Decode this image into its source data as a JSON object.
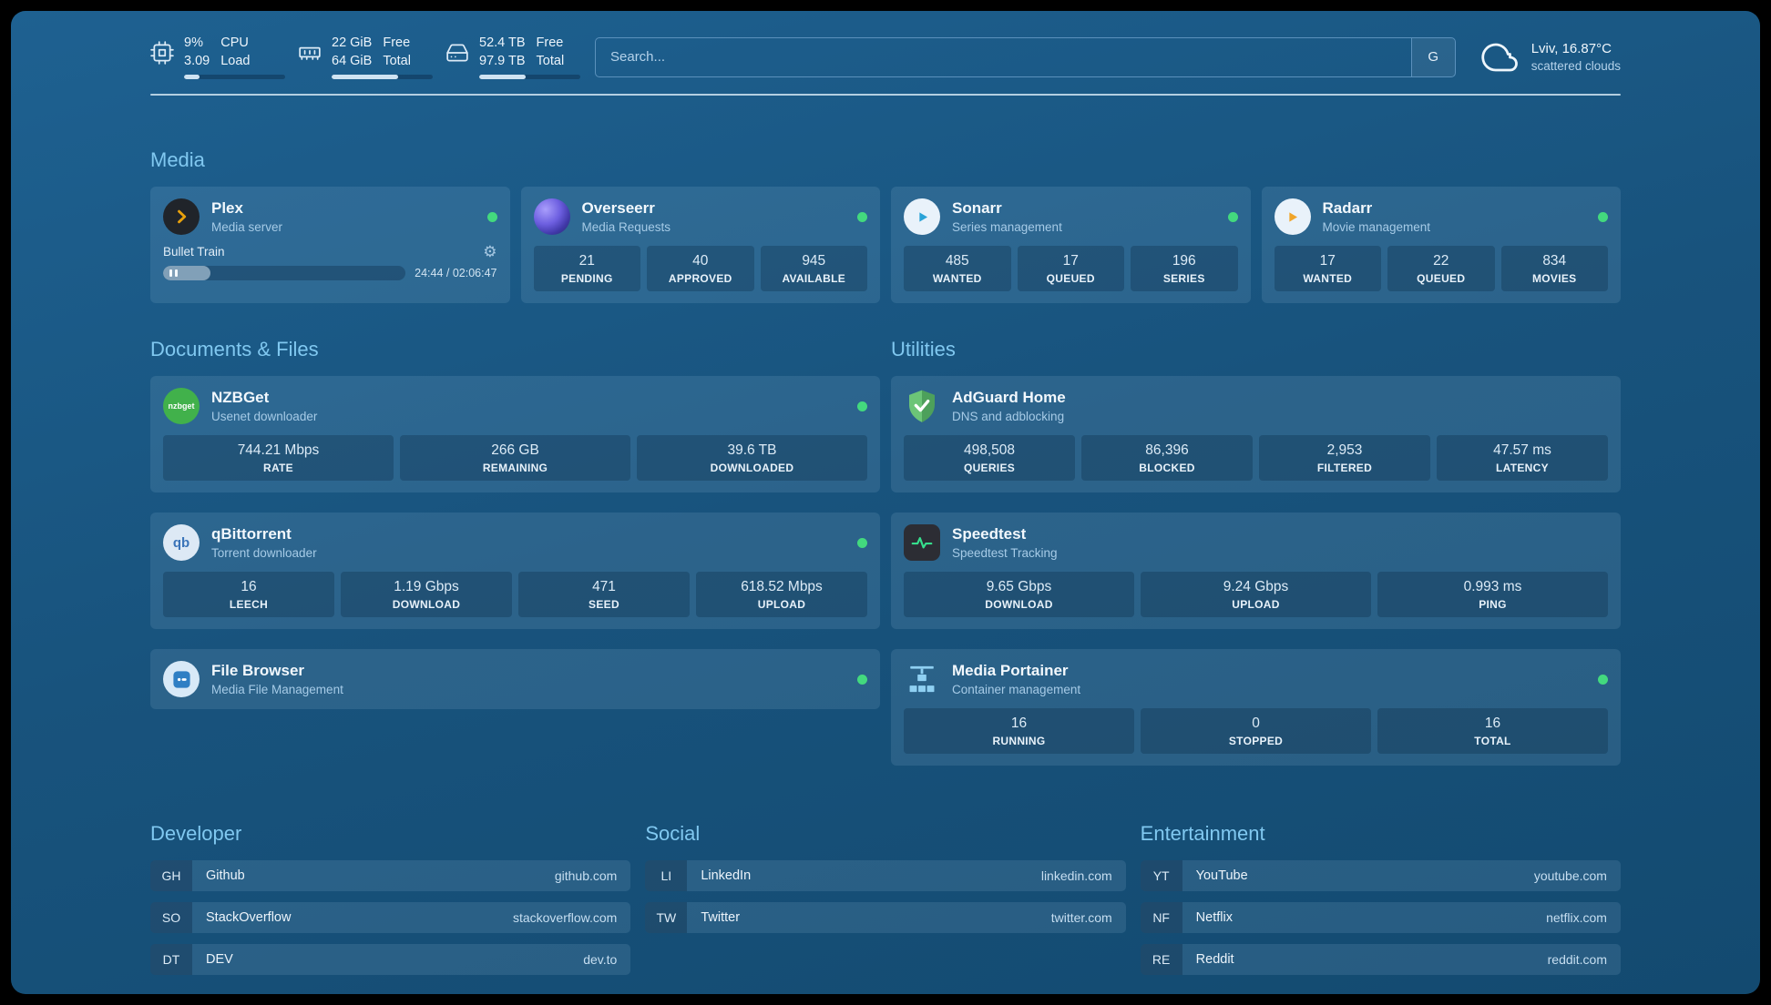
{
  "topbar": {
    "widgets": [
      {
        "icon": "cpu-icon",
        "values": [
          "9%",
          "3.09"
        ],
        "labels": [
          "CPU",
          "Load"
        ],
        "progress_pct": 15
      },
      {
        "icon": "memory-icon",
        "values": [
          "22 GiB",
          "64 GiB"
        ],
        "labels": [
          "Free",
          "Total"
        ],
        "progress_pct": 66
      },
      {
        "icon": "disk-icon",
        "values": [
          "52.4 TB",
          "97.9 TB"
        ],
        "labels": [
          "Free",
          "Total"
        ],
        "progress_pct": 46
      }
    ],
    "search": {
      "placeholder": "Search...",
      "provider": "G"
    },
    "weather": {
      "location": "Lviv, 16.87°C",
      "condition": "scattered clouds"
    }
  },
  "icon_glyphs": {
    "nzbget": "nzbget",
    "qbittorrent": "qb",
    "gear": "⚙"
  },
  "sections": {
    "media": {
      "title": "Media",
      "services": [
        {
          "icon": "plex",
          "name": "Plex",
          "desc": "Media server",
          "status": "online",
          "player": {
            "title": "Bullet Train",
            "time": "24:44 / 02:06:47",
            "progress_pct": 19.5
          }
        },
        {
          "icon": "overseerr",
          "name": "Overseerr",
          "desc": "Media Requests",
          "status": "online",
          "stats": [
            {
              "value": "21",
              "label": "PENDING"
            },
            {
              "value": "40",
              "label": "APPROVED"
            },
            {
              "value": "945",
              "label": "AVAILABLE"
            }
          ]
        },
        {
          "icon": "sonarr",
          "name": "Sonarr",
          "desc": "Series management",
          "status": "online",
          "stats": [
            {
              "value": "485",
              "label": "WANTED"
            },
            {
              "value": "17",
              "label": "QUEUED"
            },
            {
              "value": "196",
              "label": "SERIES"
            }
          ]
        },
        {
          "icon": "radarr",
          "name": "Radarr",
          "desc": "Movie management",
          "status": "online",
          "stats": [
            {
              "value": "17",
              "label": "WANTED"
            },
            {
              "value": "22",
              "label": "QUEUED"
            },
            {
              "value": "834",
              "label": "MOVIES"
            }
          ]
        }
      ]
    },
    "documents": {
      "title": "Documents & Files",
      "services": [
        {
          "icon": "nzbget",
          "name": "NZBGet",
          "desc": "Usenet downloader",
          "status": "online",
          "stats": [
            {
              "value": "744.21 Mbps",
              "label": "RATE"
            },
            {
              "value": "266 GB",
              "label": "REMAINING"
            },
            {
              "value": "39.6 TB",
              "label": "DOWNLOADED"
            }
          ]
        },
        {
          "icon": "qbittorrent",
          "name": "qBittorrent",
          "desc": "Torrent downloader",
          "status": "online",
          "stats": [
            {
              "value": "16",
              "label": "LEECH"
            },
            {
              "value": "1.19 Gbps",
              "label": "DOWNLOAD"
            },
            {
              "value": "471",
              "label": "SEED"
            },
            {
              "value": "618.52 Mbps",
              "label": "UPLOAD"
            }
          ]
        },
        {
          "icon": "filebrowser",
          "name": "File Browser",
          "desc": "Media File Management",
          "status": "online"
        }
      ]
    },
    "utilities": {
      "title": "Utilities",
      "services": [
        {
          "icon": "adguard",
          "name": "AdGuard Home",
          "desc": "DNS and adblocking",
          "status": "none",
          "stats": [
            {
              "value": "498,508",
              "label": "QUERIES"
            },
            {
              "value": "86,396",
              "label": "BLOCKED"
            },
            {
              "value": "2,953",
              "label": "FILTERED"
            },
            {
              "value": "47.57 ms",
              "label": "LATENCY"
            }
          ]
        },
        {
          "icon": "speedtest",
          "name": "Speedtest",
          "desc": "Speedtest Tracking",
          "status": "none",
          "stats": [
            {
              "value": "9.65 Gbps",
              "label": "DOWNLOAD"
            },
            {
              "value": "9.24 Gbps",
              "label": "UPLOAD"
            },
            {
              "value": "0.993 ms",
              "label": "PING"
            }
          ]
        },
        {
          "icon": "portainer",
          "name": "Media Portainer",
          "desc": "Container management",
          "status": "online",
          "stats": [
            {
              "value": "16",
              "label": "RUNNING"
            },
            {
              "value": "0",
              "label": "STOPPED"
            },
            {
              "value": "16",
              "label": "TOTAL"
            }
          ]
        }
      ]
    }
  },
  "bookmarks": {
    "groups": [
      {
        "title": "Developer",
        "items": [
          {
            "abbr": "GH",
            "name": "Github",
            "url": "github.com"
          },
          {
            "abbr": "SO",
            "name": "StackOverflow",
            "url": "stackoverflow.com"
          },
          {
            "abbr": "DT",
            "name": "DEV",
            "url": "dev.to"
          }
        ]
      },
      {
        "title": "Social",
        "items": [
          {
            "abbr": "LI",
            "name": "LinkedIn",
            "url": "linkedin.com"
          },
          {
            "abbr": "TW",
            "name": "Twitter",
            "url": "twitter.com"
          }
        ]
      },
      {
        "title": "Entertainment",
        "items": [
          {
            "abbr": "YT",
            "name": "YouTube",
            "url": "youtube.com"
          },
          {
            "abbr": "NF",
            "name": "Netflix",
            "url": "netflix.com"
          },
          {
            "abbr": "RE",
            "name": "Reddit",
            "url": "reddit.com"
          }
        ]
      }
    ]
  },
  "colors": {
    "status_online": "#43d97e",
    "accent": "#80c8f0"
  }
}
